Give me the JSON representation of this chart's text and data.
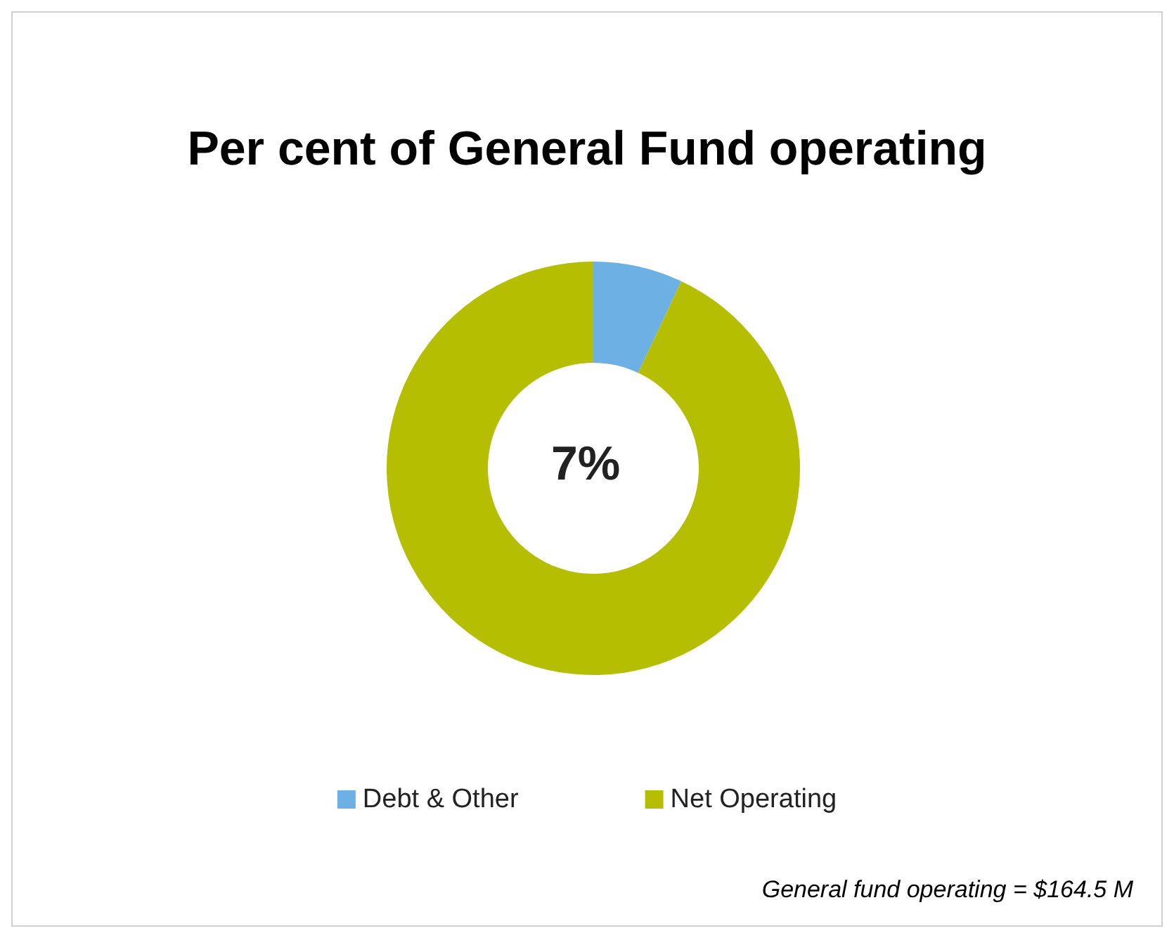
{
  "chart_data": {
    "type": "donut",
    "title": "Per cent of General Fund operating",
    "categories": [
      "Debt & Other",
      "Net Operating"
    ],
    "values": [
      7,
      93
    ],
    "colors": [
      "#6cb0e4",
      "#b5be00"
    ],
    "legend": "bottom",
    "annotations": [
      "7%",
      "General fund operating = $164.5 M"
    ]
  }
}
